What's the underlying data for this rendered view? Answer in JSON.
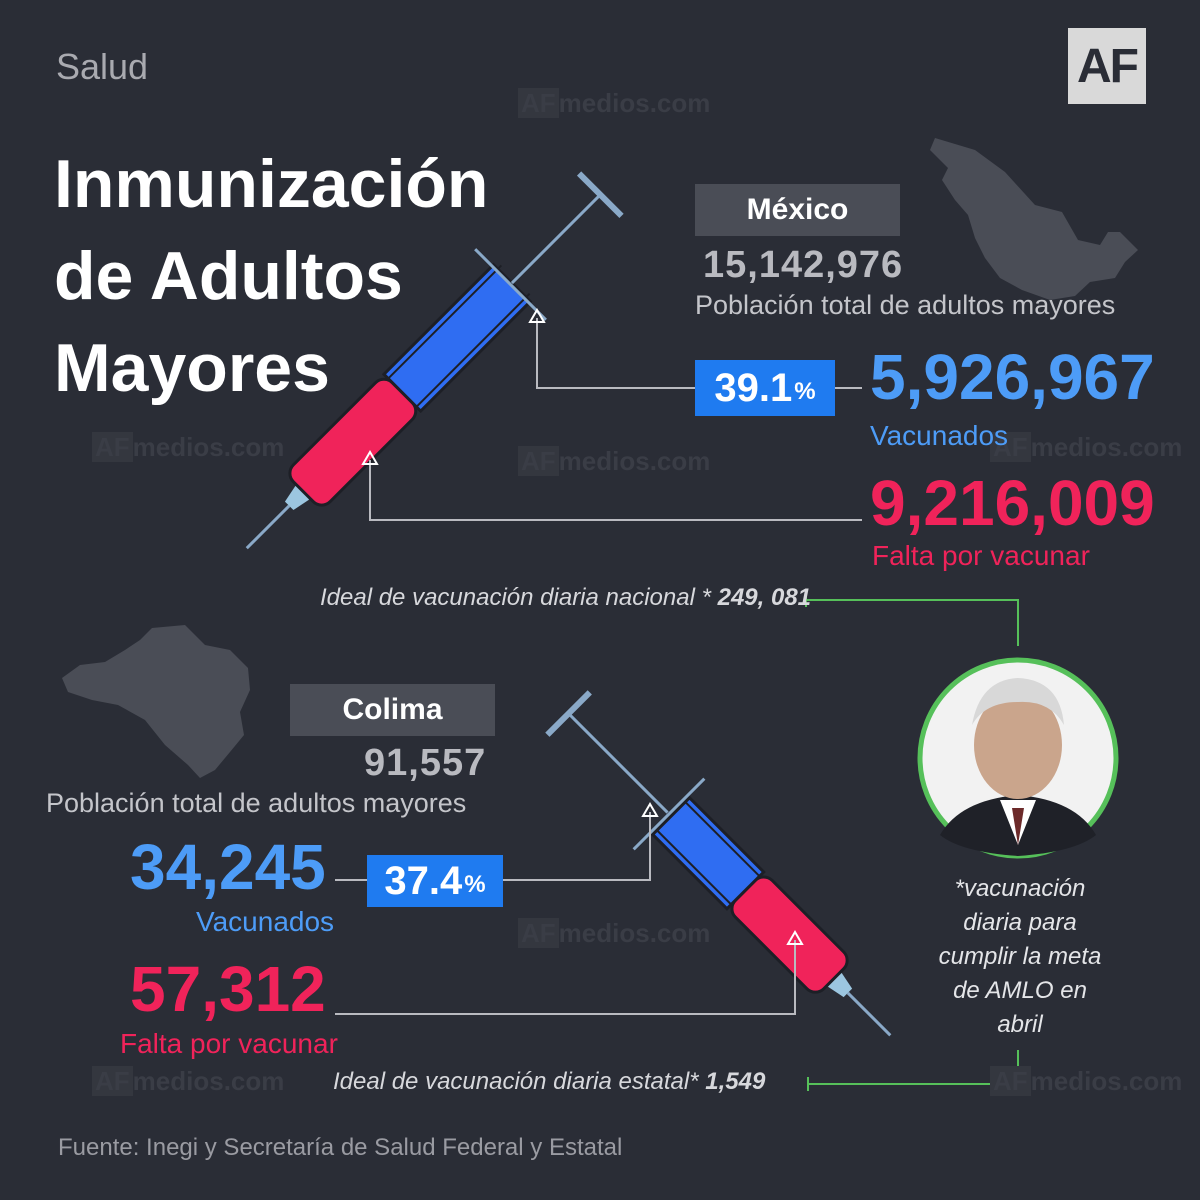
{
  "header": {
    "section": "Salud",
    "logo": "AF"
  },
  "title": {
    "line1": "Inmunización",
    "line2": "de Adultos",
    "line3": "Mayores"
  },
  "watermark": {
    "af": "AF",
    "text": "medios",
    "suffix": ".com"
  },
  "mexico": {
    "name": "México",
    "population": "15,142,976",
    "population_label": "Población total de adultos mayores",
    "percent": "39.1",
    "percent_sign": "%",
    "vaccinated": "5,926,967",
    "vaccinated_label": "Vacunados",
    "pending": "9,216,009",
    "pending_label": "Falta por vacunar",
    "ideal_label": "Ideal de vacunación diaria nacional *",
    "ideal_value": "249, 081"
  },
  "colima": {
    "name": "Colima",
    "population": "91,557",
    "population_label": "Población total de adultos mayores",
    "percent": "37.4",
    "percent_sign": "%",
    "vaccinated": "34,245",
    "vaccinated_label": "Vacunados",
    "pending": "57,312",
    "pending_label": "Falta por vacunar",
    "ideal_label": "Ideal de vacunación diaria estatal*",
    "ideal_value": "1,549"
  },
  "note": "*vacunación diaria para cumplir la meta de AMLO en abril",
  "source": "Fuente: Inegi y Secretaría de Salud Federal y Estatal",
  "colors": {
    "background": "#2a2d36",
    "blue": "#4d9cf7",
    "red": "#f0235a",
    "green": "#56c05a",
    "tag": "#4a4d56"
  }
}
